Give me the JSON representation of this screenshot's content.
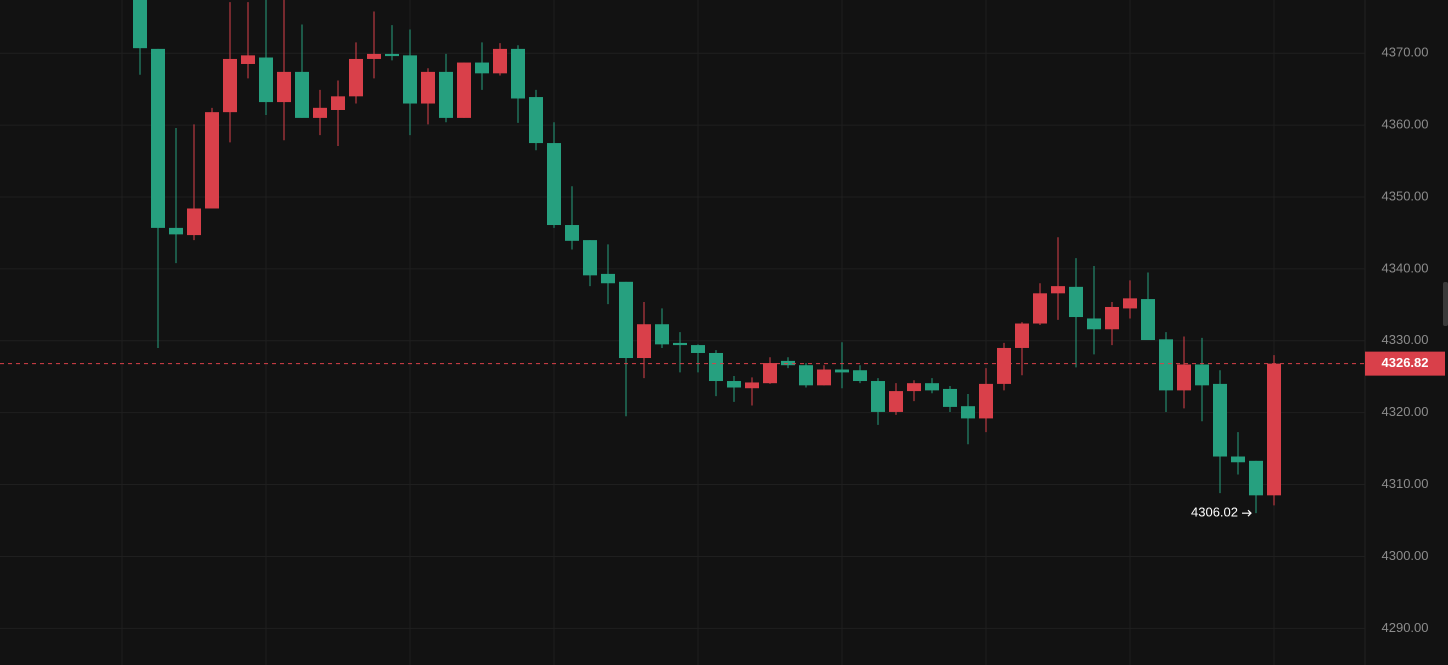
{
  "chart_data": {
    "type": "candlestick",
    "categories": [
      null,
      null,
      null,
      null,
      null,
      null,
      null,
      null,
      null,
      null,
      null,
      null,
      null,
      null,
      null,
      null,
      null,
      null,
      null,
      null,
      null,
      null,
      null,
      null,
      null,
      null,
      null,
      null,
      null,
      null,
      null,
      null,
      null,
      null,
      null,
      null,
      null,
      null,
      null,
      null,
      null,
      null,
      null,
      null,
      null,
      null,
      null,
      null,
      null,
      null,
      null,
      null,
      null,
      null,
      null,
      null,
      null,
      null,
      null,
      null,
      null,
      null,
      null,
      null
    ],
    "open": [
      4380,
      4370.6,
      4345.7,
      4344.7,
      4348.4,
      4361.8,
      4368.5,
      4369.4,
      4363.2,
      4367.4,
      4361.0,
      4362.1,
      4364.0,
      4369.2,
      4369.9,
      4369.7,
      4363.0,
      4367.4,
      4361.0,
      4368.7,
      4367.2,
      4370.6,
      4363.9,
      4357.5,
      4346.1,
      4344.0,
      4339.3,
      4338.2,
      4327.6,
      4332.3,
      4329.7,
      4329.4,
      4328.3,
      4324.4,
      4323.4,
      4324.1,
      4327.2,
      4326.6,
      4323.8,
      4326.0,
      4325.9,
      4324.4,
      4320.1,
      4323.0,
      4324.1,
      4323.3,
      4320.9,
      4319.2,
      4324.0,
      4329.0,
      4332.4,
      4336.6,
      4337.5,
      4333.1,
      4331.6,
      4334.5,
      4335.8,
      4330.2,
      4323.1,
      4326.7,
      4324.0,
      4313.9,
      4313.3,
      4308.5
    ],
    "high": [
      4382,
      4370.6,
      4359.6,
      4360.1,
      4362.4,
      4377.1,
      4377.1,
      4377.4,
      4377.4,
      4374.0,
      4364.9,
      4366.2,
      4371.5,
      4375.8,
      4373.9,
      4373.3,
      4367.9,
      4369.9,
      4368.7,
      4371.5,
      4371.4,
      4371.1,
      4364.9,
      4360.4,
      4351.5,
      4344.0,
      4343.4,
      4338.2,
      4335.4,
      4334.5,
      4331.2,
      4329.5,
      4328.7,
      4325.1,
      4324.9,
      4327.7,
      4327.7,
      4326.9,
      4326.6,
      4329.8,
      4326.6,
      4324.8,
      4324.1,
      4324.5,
      4324.8,
      4323.7,
      4322.6,
      4326.2,
      4329.7,
      4332.6,
      4338.0,
      4344.4,
      4341.5,
      4340.4,
      4335.4,
      4338.4,
      4339.5,
      4331.2,
      4330.6,
      4330.4,
      4325.9,
      4317.3,
      4313.3,
      4328.0
    ],
    "low": [
      4367,
      4329.0,
      4340.8,
      4344.0,
      4348.4,
      4357.6,
      4366.5,
      4361.4,
      4357.9,
      4361.0,
      4358.6,
      4357.1,
      4363.0,
      4366.5,
      4369.0,
      4358.6,
      4360.1,
      4360.4,
      4361.0,
      4364.9,
      4366.9,
      4360.3,
      4356.5,
      4345.7,
      4342.7,
      4337.6,
      4335.1,
      4319.5,
      4324.8,
      4329.0,
      4325.6,
      4325.6,
      4322.3,
      4321.5,
      4321.0,
      4324.0,
      4326.2,
      4323.5,
      4323.8,
      4323.4,
      4324.1,
      4318.3,
      4319.7,
      4321.6,
      4322.7,
      4320.1,
      4315.6,
      4317.3,
      4323.1,
      4325.2,
      4332.2,
      4332.9,
      4326.3,
      4328.1,
      4329.4,
      4333.1,
      4330.1,
      4320.1,
      4320.6,
      4318.8,
      4308.8,
      4311.4,
      4306.02,
      4307.1
    ],
    "close": [
      4370.7,
      4345.7,
      4344.8,
      4348.4,
      4361.8,
      4369.2,
      4369.7,
      4363.2,
      4367.4,
      4361.0,
      4362.4,
      4364.0,
      4369.2,
      4369.9,
      4369.6,
      4363.0,
      4367.4,
      4361.0,
      4368.7,
      4367.2,
      4370.6,
      4363.7,
      4357.5,
      4346.1,
      4343.9,
      4339.1,
      4338.0,
      4327.6,
      4332.3,
      4329.5,
      4329.4,
      4328.3,
      4324.4,
      4323.5,
      4324.2,
      4326.9,
      4326.6,
      4323.8,
      4326.0,
      4325.6,
      4324.4,
      4320.1,
      4323.0,
      4324.1,
      4323.1,
      4320.8,
      4319.2,
      4324.0,
      4329.0,
      4332.4,
      4336.6,
      4337.6,
      4333.3,
      4331.6,
      4334.7,
      4335.9,
      4330.1,
      4323.1,
      4326.7,
      4323.8,
      4313.9,
      4313.1,
      4308.5,
      4326.82
    ],
    "up_color": "#d9404a",
    "down_color": "#26a07f",
    "ylim": [
      4284.9,
      4377.4
    ],
    "yticks": [
      {
        "value": 4290,
        "label": "4290.00"
      },
      {
        "value": 4300,
        "label": "4300.00"
      },
      {
        "value": 4310,
        "label": "4310.00"
      },
      {
        "value": 4320,
        "label": "4320.00"
      },
      {
        "value": 4330,
        "label": "4330.00"
      },
      {
        "value": 4340,
        "label": "4340.00"
      },
      {
        "value": 4350,
        "label": "4350.00"
      },
      {
        "value": 4360,
        "label": "4360.00"
      },
      {
        "value": 4370,
        "label": "4370.00"
      }
    ],
    "grid": true
  }
}
